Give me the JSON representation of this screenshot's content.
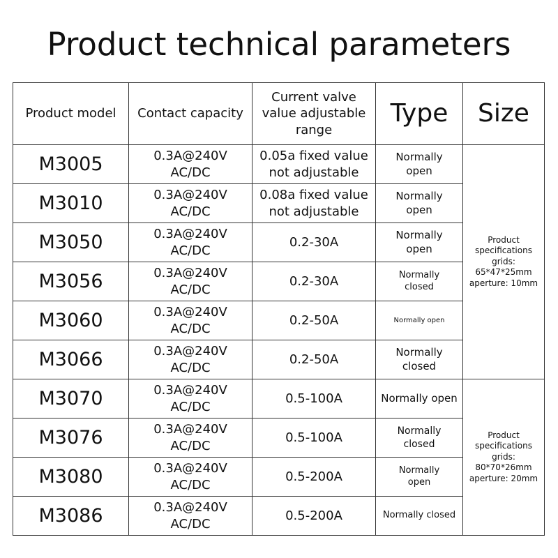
{
  "title": "Product technical parameters",
  "table": {
    "header": [
      "Product model",
      "Contact capacity",
      "Current valve value adjustable range",
      "Type",
      "Size"
    ],
    "rows": [
      [
        "M3005",
        "0.3A@240V AC/DC",
        "0.05a fixed value not adjustable",
        "Normally open"
      ],
      [
        "M3010",
        "0.3A@240V AC/DC",
        "0.08a fixed value not adjustable",
        "Normally open"
      ],
      [
        "M3050",
        "0.3A@240V AC/DC",
        "0.2-30A",
        "Normally open"
      ],
      [
        "M3056",
        "0.3A@240V AC/DC",
        "0.2-30A",
        "Normally closed"
      ],
      [
        "M3060",
        "0.3A@240V AC/DC",
        "0.2-50A",
        "Normally open"
      ],
      [
        "M3066",
        "0.3A@240V AC/DC",
        "0.2-50A",
        "Normally closed"
      ],
      [
        "M3070",
        "0.3A@240V AC/DC",
        "0.5-100A",
        "Normally open"
      ],
      [
        "M3076",
        "0.3A@240V AC/DC",
        "0.5-100A",
        "Normally closed"
      ],
      [
        "M3080",
        "0.3A@240V AC/DC",
        "0.5-200A",
        "Normally open"
      ],
      [
        "M3086",
        "0.3A@240V AC/DC",
        "0.5-200A",
        "Normally closed"
      ]
    ],
    "sizes": [
      "Product specifications grids: 65*47*25mm aperture: 10mm",
      "Product specifications grids: 80*70*26mm aperture: 20mm"
    ]
  }
}
